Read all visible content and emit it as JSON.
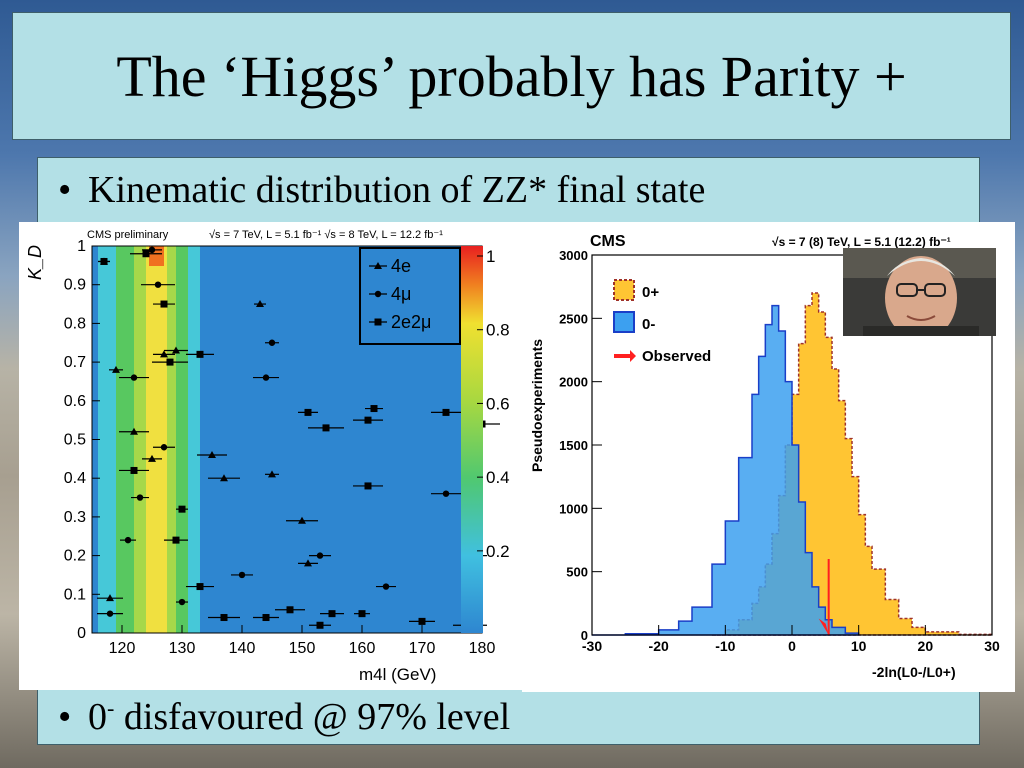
{
  "title": "The ‘Higgs’ probably has Parity +",
  "bullets": [
    {
      "bullet": "•",
      "text": "Kinematic distribution of ZZ* final state"
    },
    {
      "bullet": "•",
      "text_pre": "0",
      "sup": "-",
      "text_post": " disfavoured @ 97% level"
    }
  ],
  "left_chart": {
    "header_left": "CMS preliminary",
    "header_right": "√s = 7 TeV, L = 5.1 fb⁻¹  √s = 8 TeV, L = 12.2 fb⁻¹",
    "ylabel": "K_D",
    "xlabel": "m4l (GeV)",
    "xticks": [
      "120",
      "130",
      "140",
      "150",
      "160",
      "170",
      "180"
    ],
    "yticks": [
      "0",
      "0.1",
      "0.2",
      "0.3",
      "0.4",
      "0.5",
      "0.6",
      "0.7",
      "0.8",
      "0.9",
      "1"
    ],
    "colorbar_ticks": [
      "1",
      "0.8",
      "0.6",
      "0.4",
      "0.2"
    ],
    "legend": [
      "4e",
      "4μ",
      "2e2μ"
    ],
    "colors": {
      "background": "#2e86d0",
      "band_inner": "#a6d84a",
      "band_mid": "#58c860",
      "band_outer": "#46c8d8",
      "peak": "#f0e040",
      "hot": "#f07020"
    }
  },
  "right_chart": {
    "header_left": "CMS",
    "header_right": "√s = 7 (8) TeV, L = 5.1 (12.2) fb⁻¹",
    "ylabel": "Pseudoexperiments",
    "xlabel": "-2ln(L0-/L0+)",
    "xticks": [
      "-30",
      "-20",
      "-10",
      "0",
      "10",
      "20",
      "30"
    ],
    "yticks": [
      "0",
      "500",
      "1000",
      "1500",
      "2000",
      "2500",
      "3000"
    ],
    "legend": [
      "0+",
      "0-",
      "Observed"
    ],
    "colors": {
      "plus": "#ffc533",
      "plus_edge": "#a0322a",
      "minus": "#3ca0f0",
      "minus_edge": "#1a3fc8",
      "observed": "#ff2020"
    }
  },
  "chart_data": [
    {
      "type": "scatter",
      "title": "",
      "xlabel": "m4l (GeV)",
      "ylabel": "K_D",
      "xlim": [
        115,
        180
      ],
      "ylim": [
        0,
        1
      ],
      "series": [
        {
          "name": "4e",
          "points": [
            [
              117,
              0.96
            ],
            [
              119,
              0.68
            ],
            [
              122,
              0.52
            ],
            [
              125,
              0.45
            ],
            [
              127,
              0.72
            ],
            [
              129,
              0.73
            ],
            [
              135,
              0.46
            ],
            [
              137,
              0.4
            ],
            [
              143,
              0.85
            ],
            [
              145,
              0.41
            ],
            [
              150,
              0.29
            ],
            [
              151,
              0.18
            ],
            [
              179,
              0.2
            ],
            [
              118,
              0.09
            ]
          ]
        },
        {
          "name": "4μ",
          "points": [
            [
              118,
              0.05
            ],
            [
              121,
              0.24
            ],
            [
              122,
              0.66
            ],
            [
              123,
              0.35
            ],
            [
              125,
              0.99
            ],
            [
              126,
              0.9
            ],
            [
              127,
              0.48
            ],
            [
              130,
              0.08
            ],
            [
              140,
              0.15
            ],
            [
              144,
              0.66
            ],
            [
              145,
              0.75
            ],
            [
              153,
              0.2
            ],
            [
              164,
              0.12
            ],
            [
              174,
              0.36
            ]
          ]
        },
        {
          "name": "2e2μ",
          "points": [
            [
              117,
              0.96
            ],
            [
              122,
              0.42
            ],
            [
              124,
              0.98
            ],
            [
              127,
              0.85
            ],
            [
              128,
              0.7
            ],
            [
              129,
              0.24
            ],
            [
              130,
              0.32
            ],
            [
              133,
              0.12
            ],
            [
              133,
              0.72
            ],
            [
              137,
              0.04
            ],
            [
              144,
              0.04
            ],
            [
              148,
              0.06
            ],
            [
              151,
              0.57
            ],
            [
              153,
              0.02
            ],
            [
              154,
              0.53
            ],
            [
              155,
              0.05
            ],
            [
              160,
              0.05
            ],
            [
              161,
              0.38
            ],
            [
              161,
              0.55
            ],
            [
              162,
              0.58
            ],
            [
              170,
              0.03
            ],
            [
              174,
              0.57
            ],
            [
              178,
              0.02
            ],
            [
              180,
              0.54
            ]
          ]
        }
      ]
    },
    {
      "type": "area",
      "title": "",
      "xlabel": "-2ln(L0-/L0+)",
      "ylabel": "Pseudoexperiments",
      "xlim": [
        -30,
        30
      ],
      "ylim": [
        0,
        3000
      ],
      "series": [
        {
          "name": "0-",
          "x": [
            -30,
            -25,
            -20,
            -17,
            -15,
            -12,
            -10,
            -8,
            -6,
            -5,
            -4,
            -3,
            -2,
            -1,
            0,
            1,
            2,
            3,
            4,
            5,
            6,
            8,
            10
          ],
          "values": [
            0,
            10,
            40,
            110,
            220,
            560,
            900,
            1400,
            1900,
            2200,
            2450,
            2600,
            2400,
            2000,
            1500,
            1050,
            650,
            380,
            220,
            120,
            60,
            15,
            0
          ]
        },
        {
          "name": "0+",
          "x": [
            -12,
            -10,
            -8,
            -6,
            -5,
            -4,
            -3,
            -2,
            -1,
            0,
            1,
            2,
            3,
            4,
            5,
            6,
            7,
            8,
            9,
            10,
            11,
            12,
            14,
            16,
            18,
            20,
            25,
            30
          ],
          "values": [
            0,
            40,
            120,
            250,
            380,
            560,
            800,
            1100,
            1500,
            1900,
            2300,
            2600,
            2700,
            2550,
            2350,
            2100,
            1850,
            1550,
            1250,
            950,
            700,
            520,
            280,
            130,
            60,
            25,
            5,
            0
          ]
        }
      ],
      "observed": 5.5
    }
  ]
}
